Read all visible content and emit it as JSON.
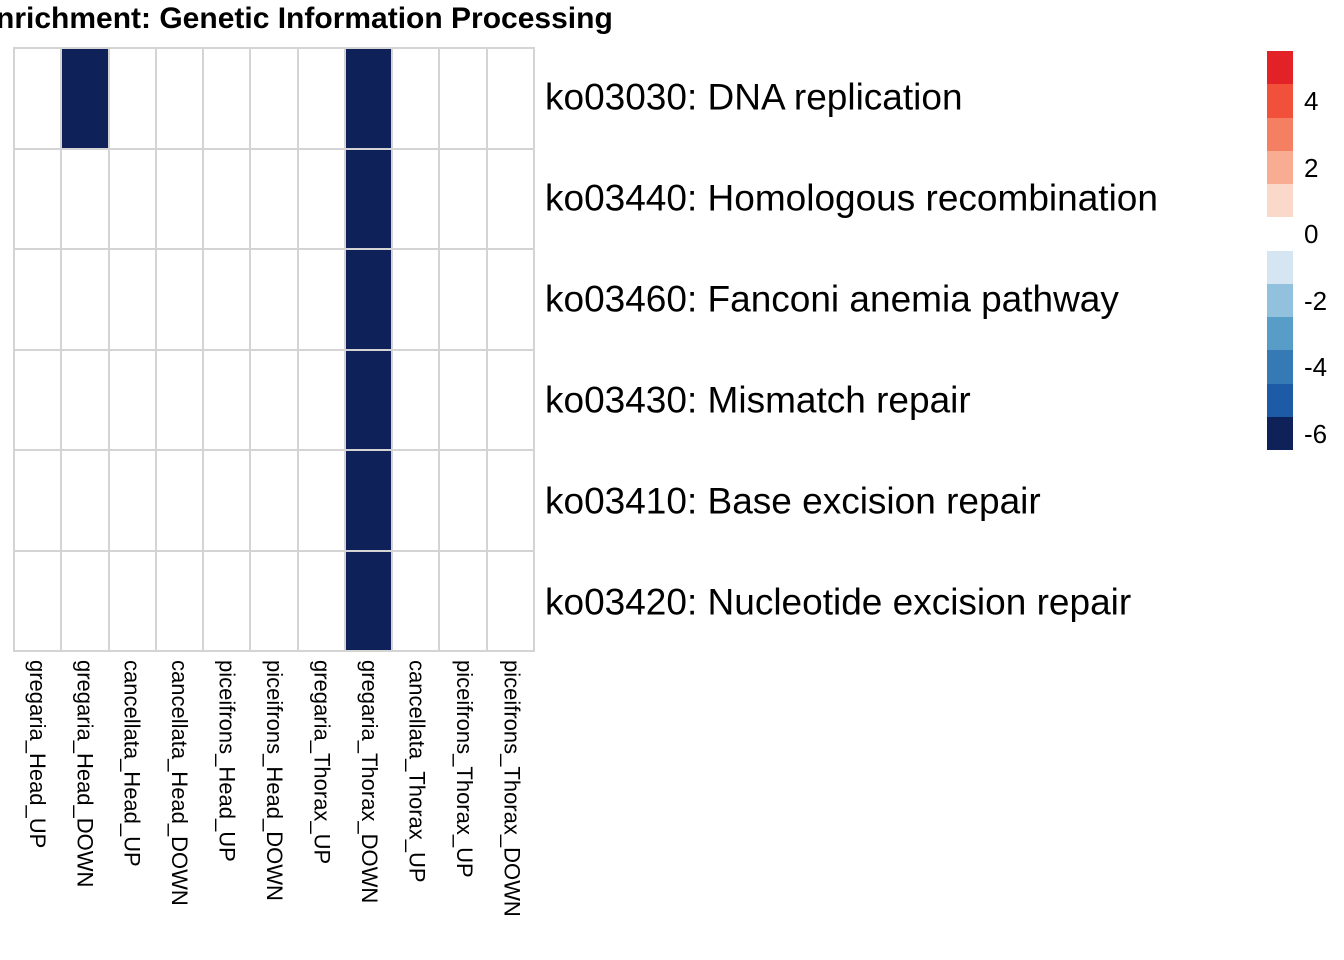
{
  "title": "nrichment: Genetic Information Processing",
  "colors": {
    "background": "#FFFFFF",
    "grid_line": "#D4D4D4",
    "cell_empty": "#FFFFFF",
    "cell_filled": "#0E2158",
    "text": "#000000"
  },
  "chart_data": {
    "type": "heatmap",
    "title": "nrichment: Genetic Information Processing",
    "columns": [
      "gregaria_Head_UP",
      "gregaria_Head_DOWN",
      "cancellata_Head_UP",
      "cancellata_Head_DOWN",
      "piceifrons_Head_UP",
      "piceifrons_Head_DOWN",
      "gregaria_Thorax_UP",
      "gregaria_Thorax_DOWN",
      "cancellata_Thorax_UP",
      "piceifrons_Thorax_UP",
      "piceifrons_Thorax_DOWN"
    ],
    "rows": [
      "ko03030: DNA replication",
      "ko03440: Homologous recombination",
      "ko03460: Fanconi anemia pathway",
      "ko03430: Mismatch repair",
      "ko03410: Base excision repair",
      "ko03420: Nucleotide excision repair"
    ],
    "values": [
      [
        0,
        -6,
        0,
        0,
        0,
        0,
        0,
        -6,
        0,
        0,
        0
      ],
      [
        0,
        0,
        0,
        0,
        0,
        0,
        0,
        -6,
        0,
        0,
        0
      ],
      [
        0,
        0,
        0,
        0,
        0,
        0,
        0,
        -6,
        0,
        0,
        0
      ],
      [
        0,
        0,
        0,
        0,
        0,
        0,
        0,
        -6,
        0,
        0,
        0
      ],
      [
        0,
        0,
        0,
        0,
        0,
        0,
        0,
        -6,
        0,
        0,
        0
      ],
      [
        0,
        0,
        0,
        0,
        0,
        0,
        0,
        -6,
        0,
        0,
        0
      ]
    ],
    "grid": true,
    "legend_position": "right",
    "colorbar": {
      "ticks": [
        4,
        2,
        0,
        -2,
        -4,
        -6
      ],
      "domain_top": 5.5,
      "domain_bottom": -6.5,
      "segment_colors": [
        "#E32227",
        "#F1503B",
        "#F57F62",
        "#F8AD92",
        "#FBD9CA",
        "#FFFFFF",
        "#D6E5F2",
        "#92C1DE",
        "#579DC8",
        "#3579B5",
        "#1E5BA6",
        "#0E2158"
      ]
    }
  }
}
